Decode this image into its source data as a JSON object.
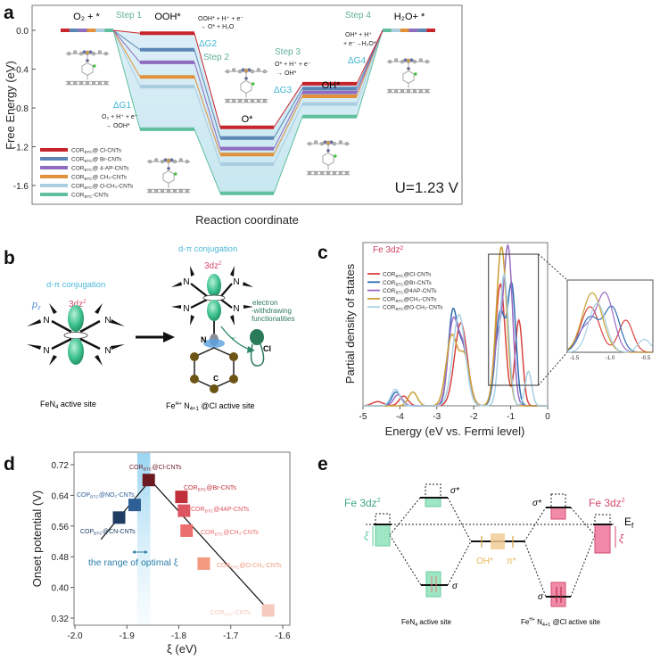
{
  "colors": {
    "cl": "#c8242b",
    "br": "#4f7fb5",
    "ap": "#8e6cc0",
    "ch3": "#e0913a",
    "och3": "#a9cde0",
    "cnts": "#5fbf9f",
    "step": "#5fae9a",
    "dg": "#3fb6d0",
    "green": "#5cc9a0",
    "pink": "#e0587e"
  },
  "chart_data": [
    {
      "panel": "a",
      "type": "line",
      "title": "",
      "xlabel": "Reaction coordinate",
      "ylabel": "Free Energy (eV)",
      "ylim": [
        -1.8,
        0.2
      ],
      "yticks": [
        "0.0",
        "-0.4",
        "-0.8",
        "-1.2",
        "-1.6"
      ],
      "ytick_values": [
        0.0,
        -0.4,
        -0.8,
        -1.2,
        -1.6
      ],
      "states": [
        "O₂ + *",
        "OOH*",
        "O*",
        "OH*",
        "H₂O+ *"
      ],
      "steps": [
        "Step 1",
        "Step 2",
        "Step 3",
        "Step 4"
      ],
      "delta_g": [
        "ΔG1",
        "ΔG2",
        "ΔG3",
        "ΔG4"
      ],
      "equations": {
        "eq1": [
          "O₂ + H⁺ + e⁻",
          "→ OOH*"
        ],
        "eq2": [
          "OOH* + H⁺ + e⁻",
          "→ O* + H₂O"
        ],
        "eq3": [
          "O* + H⁺ + e⁻",
          "→ OH*"
        ],
        "eq4": [
          "OH* + H⁺",
          "+ e⁻→H₂O*"
        ]
      },
      "annotation": "U=1.23 V",
      "legend_position": "bottom-left",
      "series": [
        {
          "key": "cl",
          "color": "#c8242b",
          "label": {
            "prefix": "COR",
            "sub": "BTC",
            "suffix": "@ Cl-CNTs"
          },
          "values": [
            0,
            -0.03,
            -1.0,
            -0.55,
            0
          ]
        },
        {
          "key": "br",
          "color": "#5b86b5",
          "label": {
            "prefix": "COR",
            "sub": "BTC",
            "suffix": "@ Br-CNTs"
          },
          "values": [
            0,
            -0.2,
            -1.11,
            -0.6,
            0
          ]
        },
        {
          "key": "ap",
          "color": "#8e6cc0",
          "label": {
            "prefix": "COR",
            "sub": "BTC",
            "suffix": "@ 4-AP-CNTs"
          },
          "values": [
            0,
            -0.33,
            -1.22,
            -0.64,
            0
          ]
        },
        {
          "key": "ch3",
          "color": "#e0913a",
          "label": {
            "prefix": "COR",
            "sub": "BTC",
            "suffix": "@ CH₃-CNTs"
          },
          "values": [
            0,
            -0.48,
            -1.28,
            -0.68,
            0
          ]
        },
        {
          "key": "och3",
          "color": "#a9cde0",
          "label": {
            "prefix": "COR",
            "sub": "BTC",
            "suffix": "@ O-CH₃-CNTs"
          },
          "values": [
            0,
            -0.58,
            -1.38,
            -0.76,
            0
          ]
        },
        {
          "key": "cnts",
          "color": "#5fbf9f",
          "label": {
            "prefix": "COR",
            "sub": "BTC",
            "suffix": "-CNTs"
          },
          "values": [
            0,
            -1.02,
            -1.68,
            -0.89,
            0
          ]
        }
      ]
    },
    {
      "panel": "c",
      "type": "line",
      "title": "Fe 3dz²",
      "xlabel": "Energy (eV vs. Fermi level)",
      "ylabel": "Partial density of states",
      "xlim": [
        -5,
        0
      ],
      "xticks": [
        "-5",
        "-4",
        "-3",
        "-2",
        "-1",
        "0"
      ],
      "xtick_values": [
        -5,
        -4,
        -3,
        -2,
        -1,
        0
      ],
      "inset": {
        "xlim": [
          -1.6,
          -0.4
        ],
        "xticks": [
          "-1.5",
          "-1.0",
          "-0.5"
        ],
        "xtick_values": [
          -1.5,
          -1.0,
          -0.5
        ]
      },
      "legend_position": "top-left",
      "series": [
        {
          "color": "#d8433f",
          "label": {
            "prefix": "COR",
            "sub": "BTC",
            "suffix": "@Cl-CNTs"
          },
          "peaks": [
            [
              -4.6,
              0.03,
              0.15
            ],
            [
              -3.9,
              0.07,
              0.12
            ],
            [
              -2.35,
              0.6,
              0.17
            ],
            [
              -1.28,
              0.88,
              0.13
            ],
            [
              -0.78,
              0.62,
              0.1
            ]
          ]
        },
        {
          "color": "#2f6db5",
          "label": {
            "prefix": "COR",
            "sub": "BTC",
            "suffix": "@Br-CNTs"
          },
          "peaks": [
            [
              -4.1,
              0.1,
              0.12
            ],
            [
              -2.58,
              0.62,
              0.12
            ],
            [
              -2.3,
              0.42,
              0.15
            ],
            [
              -1.28,
              0.68,
              0.13
            ],
            [
              -0.97,
              0.85,
              0.11
            ]
          ]
        },
        {
          "color": "#9a6bc2",
          "label": {
            "prefix": "COR",
            "sub": "BTC",
            "suffix": "@4AP-CNTs"
          },
          "peaks": [
            [
              -4.05,
              0.08,
              0.12
            ],
            [
              -2.58,
              0.55,
              0.13
            ],
            [
              -2.3,
              0.42,
              0.15
            ],
            [
              -1.35,
              0.45,
              0.12
            ],
            [
              -1.07,
              1.13,
              0.12
            ]
          ]
        },
        {
          "color": "#c9a033",
          "label": {
            "prefix": "COR",
            "sub": "BTC",
            "suffix": "@CH₃-CNTs"
          },
          "peaks": [
            [
              -3.65,
              0.1,
              0.12
            ],
            [
              -2.6,
              0.5,
              0.15
            ],
            [
              -2.25,
              0.35,
              0.14
            ],
            [
              -1.25,
              1.15,
              0.14
            ]
          ]
        },
        {
          "color": "#a8d0e4",
          "label": {
            "prefix": "COR",
            "sub": "BTC",
            "suffix": "@O-CH₃-CNTs"
          },
          "peaks": [
            [
              -4.12,
              0.12,
              0.12
            ],
            [
              -2.4,
              0.66,
              0.17
            ],
            [
              -1.18,
              0.95,
              0.12
            ],
            [
              -0.52,
              0.25,
              0.09
            ]
          ]
        }
      ]
    },
    {
      "panel": "d",
      "type": "scatter",
      "xlabel": "ξ (eV)",
      "ylabel": "Onset potential (V)",
      "xlim": [
        -2.0,
        -1.58
      ],
      "ylim": [
        0.3,
        0.75
      ],
      "xticks": [
        "-2.0",
        "-1.9",
        "-1.8",
        "-1.7",
        "-1.6"
      ],
      "xtick_values": [
        -2.0,
        -1.9,
        -1.8,
        -1.7,
        -1.6
      ],
      "yticks": [
        "0.72",
        "0.64",
        "0.56",
        "0.48",
        "0.40",
        "0.32"
      ],
      "ytick_values": [
        0.72,
        0.64,
        0.56,
        0.48,
        0.4,
        0.32
      ],
      "optimal_band": [
        -1.88,
        -1.855
      ],
      "optimal_label": "the range of optimal ξ",
      "fit_lines": [
        [
          [
            -1.95,
            0.525
          ],
          [
            -1.855,
            0.68
          ]
        ],
        [
          [
            -1.855,
            0.68
          ],
          [
            -1.62,
            0.33
          ]
        ]
      ],
      "points": [
        {
          "x": -1.915,
          "y": 0.582,
          "color": "#1f3c63",
          "label": {
            "prefix": "COP",
            "sub": "BTC",
            "suffix": "@CN-CNTs"
          }
        },
        {
          "x": -1.885,
          "y": 0.615,
          "color": "#2f5f97",
          "label": {
            "prefix": "COP",
            "sub": "BTC",
            "suffix": "@NO₂-CNTs"
          }
        },
        {
          "x": -1.858,
          "y": 0.68,
          "color": "#6b1a22",
          "label": {
            "prefix": "COR",
            "sub": "BTC",
            "suffix": "@Cl-CNTs"
          }
        },
        {
          "x": -1.795,
          "y": 0.636,
          "color": "#c0303a",
          "label": {
            "prefix": "COR",
            "sub": "BTC",
            "suffix": "@Br-CNTs"
          }
        },
        {
          "x": -1.79,
          "y": 0.6,
          "color": "#dd5560",
          "label": {
            "prefix": "COR",
            "sub": "BTC",
            "suffix": "@4AP-CNTs"
          }
        },
        {
          "x": -1.785,
          "y": 0.548,
          "color": "#ec6f6f",
          "label": {
            "prefix": "COR",
            "sub": "BTC",
            "suffix": "@CH₃-CNTs"
          }
        },
        {
          "x": -1.752,
          "y": 0.462,
          "color": "#f29a80",
          "label": {
            "prefix": "COR",
            "sub": "BTC",
            "suffix": "@O-CH₃-CNTs"
          }
        },
        {
          "x": -1.628,
          "y": 0.34,
          "color": "#f6cabd",
          "label": {
            "prefix": "COR",
            "sub": "BTC",
            "suffix": "-CNTs"
          }
        }
      ]
    }
  ],
  "panels": {
    "a": {
      "letter": "a"
    },
    "b": {
      "letter": "b",
      "left": {
        "conj": "d-π conjugation",
        "pz": "p",
        "pz_sub": "z",
        "orb": "3dz",
        "orb_sup": "2",
        "n": "N",
        "caption": "FeN",
        "caption_sub": "4",
        "caption_rest": " active site"
      },
      "right": {
        "conj": "d-π conjugation",
        "orb": "3dz",
        "orb_sup": "2",
        "n": "N",
        "cl": "Cl",
        "c": "C",
        "ewg": [
          "electron",
          "-withdrawing",
          "functionalities"
        ],
        "e": "e⁻",
        "caption_fe": "Fe",
        "caption_sup": "H+",
        "caption_n": " N",
        "caption_sub": "4+1",
        "caption_rest": " @Cl active site"
      }
    },
    "c": {
      "letter": "c"
    },
    "d": {
      "letter": "d"
    },
    "e": {
      "letter": "e",
      "left_fe": "Fe  3dz",
      "sup": "2",
      "right_fe": "Fe 3dz",
      "xi": "ξ",
      "sigma_star": "σ*",
      "sigma": "σ",
      "ef": "E",
      "ef_sub": "f",
      "oh": "OH*",
      "pi": "π*",
      "left_caption": "FeN",
      "left_caption_sub": "4",
      "left_caption_rest": " active site",
      "right_caption_fe": "Fe",
      "right_caption_sup": "H+",
      "right_caption_n": " N",
      "right_caption_sub": "4+1",
      "right_caption_rest": " @Cl active site"
    }
  }
}
